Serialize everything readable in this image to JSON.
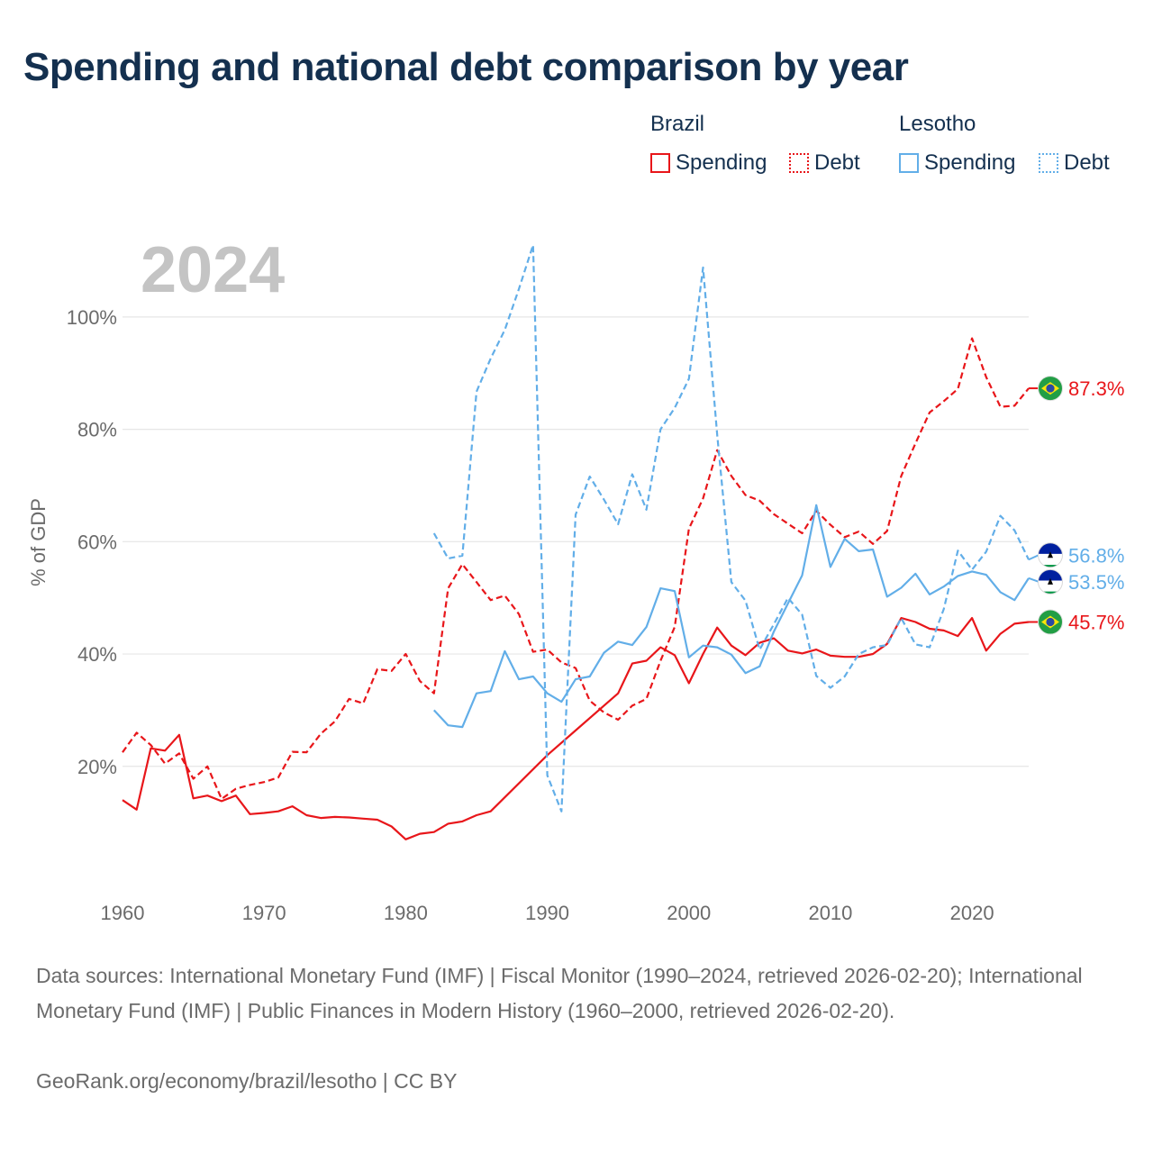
{
  "title": "Spending and national debt comparison by year",
  "legend": {
    "groups": [
      {
        "name": "Brazil",
        "items": [
          "Spending",
          "Debt"
        ]
      },
      {
        "name": "Lesotho",
        "items": [
          "Spending",
          "Debt"
        ]
      }
    ]
  },
  "colors": {
    "brazil": "#e8161a",
    "lesotho": "#62aee8",
    "year_watermark": "#c4c4c4",
    "grid": "#e6e6e6"
  },
  "footer": {
    "sources": "Data sources: International Monetary Fund (IMF) | Fiscal Monitor (1990–2024, retrieved 2026-02-20); International Monetary Fund (IMF) | Public Finances in Modern History (1960–2000, retrieved 2026-02-20).",
    "credit": "GeoRank.org/economy/brazil/lesotho | CC BY"
  },
  "chart_data": {
    "type": "line",
    "title": "Spending and national debt comparison by year",
    "year_label": "2024",
    "ylabel": "% of GDP",
    "xlabel": "",
    "xlim": [
      1960,
      2024
    ],
    "ylim": [
      0,
      110
    ],
    "x_ticks": [
      1960,
      1970,
      1980,
      1990,
      2000,
      2010,
      2020
    ],
    "y_ticks": [
      20,
      40,
      60,
      80,
      100
    ],
    "y_tick_labels": [
      "20%",
      "40%",
      "60%",
      "80%",
      "100%"
    ],
    "series": [
      {
        "name": "Brazil Spending",
        "country": "Brazil",
        "metric": "Spending",
        "style": "solid",
        "color": "#e8161a",
        "end_label": "45.7%",
        "points": [
          [
            1960,
            14.0
          ],
          [
            1961,
            12.3
          ],
          [
            1962,
            23.2
          ],
          [
            1963,
            22.8
          ],
          [
            1964,
            25.6
          ],
          [
            1965,
            14.3
          ],
          [
            1966,
            14.8
          ],
          [
            1967,
            13.8
          ],
          [
            1968,
            14.8
          ],
          [
            1969,
            11.5
          ],
          [
            1970,
            11.7
          ],
          [
            1971,
            12.0
          ],
          [
            1972,
            12.9
          ],
          [
            1973,
            11.3
          ],
          [
            1974,
            10.8
          ],
          [
            1975,
            11.0
          ],
          [
            1976,
            10.9
          ],
          [
            1977,
            10.7
          ],
          [
            1978,
            10.5
          ],
          [
            1979,
            9.3
          ],
          [
            1980,
            7.0
          ],
          [
            1981,
            8.0
          ],
          [
            1982,
            8.3
          ],
          [
            1983,
            9.8
          ],
          [
            1984,
            10.2
          ],
          [
            1985,
            11.3
          ],
          [
            1986,
            12.0
          ],
          [
            1990,
            22.0
          ],
          [
            1995,
            33.0
          ],
          [
            1996,
            38.3
          ],
          [
            1997,
            38.8
          ],
          [
            1998,
            41.2
          ],
          [
            1999,
            39.8
          ],
          [
            2000,
            34.8
          ],
          [
            2001,
            40.0
          ],
          [
            2002,
            44.7
          ],
          [
            2003,
            41.5
          ],
          [
            2004,
            39.8
          ],
          [
            2005,
            42.0
          ],
          [
            2006,
            42.8
          ],
          [
            2007,
            40.6
          ],
          [
            2008,
            40.1
          ],
          [
            2009,
            40.8
          ],
          [
            2010,
            39.7
          ],
          [
            2011,
            39.5
          ],
          [
            2012,
            39.5
          ],
          [
            2013,
            40.0
          ],
          [
            2014,
            41.8
          ],
          [
            2015,
            46.4
          ],
          [
            2016,
            45.7
          ],
          [
            2017,
            44.5
          ],
          [
            2018,
            44.2
          ],
          [
            2019,
            43.2
          ],
          [
            2020,
            46.4
          ],
          [
            2021,
            40.6
          ],
          [
            2022,
            43.6
          ],
          [
            2023,
            45.4
          ],
          [
            2024,
            45.7
          ]
        ]
      },
      {
        "name": "Brazil Debt",
        "country": "Brazil",
        "metric": "Debt",
        "style": "dashed",
        "color": "#e8161a",
        "end_label": "87.3%",
        "points": [
          [
            1960,
            22.5
          ],
          [
            1961,
            26.0
          ],
          [
            1962,
            23.8
          ],
          [
            1963,
            20.5
          ],
          [
            1964,
            22.3
          ],
          [
            1965,
            17.8
          ],
          [
            1966,
            20.0
          ],
          [
            1967,
            14.2
          ],
          [
            1968,
            16.0
          ],
          [
            1969,
            16.7
          ],
          [
            1970,
            17.2
          ],
          [
            1971,
            18.0
          ],
          [
            1972,
            22.6
          ],
          [
            1973,
            22.5
          ],
          [
            1974,
            25.8
          ],
          [
            1975,
            28.0
          ],
          [
            1976,
            32.0
          ],
          [
            1977,
            31.2
          ],
          [
            1978,
            37.3
          ],
          [
            1979,
            37.0
          ],
          [
            1980,
            40.0
          ],
          [
            1981,
            35.2
          ],
          [
            1982,
            33.0
          ],
          [
            1983,
            51.7
          ],
          [
            1984,
            56.0
          ],
          [
            1985,
            52.8
          ],
          [
            1986,
            49.6
          ],
          [
            1987,
            50.4
          ],
          [
            1988,
            47.1
          ],
          [
            1989,
            40.4
          ],
          [
            1990,
            40.8
          ],
          [
            1991,
            38.5
          ],
          [
            1992,
            37.5
          ],
          [
            1993,
            31.7
          ],
          [
            1994,
            29.6
          ],
          [
            1995,
            28.3
          ],
          [
            1996,
            30.8
          ],
          [
            1997,
            32.0
          ],
          [
            1998,
            38.8
          ],
          [
            1999,
            44.8
          ],
          [
            2000,
            62.3
          ],
          [
            2001,
            67.7
          ],
          [
            2002,
            76.3
          ],
          [
            2003,
            71.7
          ],
          [
            2004,
            68.3
          ],
          [
            2005,
            67.3
          ],
          [
            2006,
            64.9
          ],
          [
            2007,
            63.2
          ],
          [
            2008,
            61.5
          ],
          [
            2009,
            65.5
          ],
          [
            2010,
            63.0
          ],
          [
            2011,
            60.8
          ],
          [
            2012,
            61.8
          ],
          [
            2013,
            59.6
          ],
          [
            2014,
            61.9
          ],
          [
            2015,
            71.7
          ],
          [
            2016,
            77.5
          ],
          [
            2017,
            83.0
          ],
          [
            2018,
            85.0
          ],
          [
            2019,
            87.2
          ],
          [
            2020,
            96.2
          ],
          [
            2021,
            89.3
          ],
          [
            2022,
            84.0
          ],
          [
            2023,
            84.2
          ],
          [
            2024,
            87.3
          ]
        ]
      },
      {
        "name": "Lesotho Spending",
        "country": "Lesotho",
        "metric": "Spending",
        "style": "solid",
        "color": "#62aee8",
        "end_label": "53.5%",
        "points": [
          [
            1982,
            30.0
          ],
          [
            1983,
            27.3
          ],
          [
            1984,
            27.0
          ],
          [
            1985,
            33.0
          ],
          [
            1986,
            33.4
          ],
          [
            1987,
            40.5
          ],
          [
            1988,
            35.5
          ],
          [
            1989,
            36.0
          ],
          [
            1990,
            33.0
          ],
          [
            1991,
            31.5
          ],
          [
            1992,
            35.5
          ],
          [
            1993,
            36.0
          ],
          [
            1994,
            40.2
          ],
          [
            1995,
            42.2
          ],
          [
            1996,
            41.6
          ],
          [
            1997,
            44.8
          ],
          [
            1998,
            51.7
          ],
          [
            1999,
            51.2
          ],
          [
            2000,
            39.4
          ],
          [
            2001,
            41.5
          ],
          [
            2002,
            41.2
          ],
          [
            2003,
            39.9
          ],
          [
            2004,
            36.6
          ],
          [
            2005,
            37.8
          ],
          [
            2006,
            44.0
          ],
          [
            2007,
            49.0
          ],
          [
            2008,
            54.0
          ],
          [
            2009,
            66.5
          ],
          [
            2010,
            55.5
          ],
          [
            2011,
            60.5
          ],
          [
            2012,
            58.3
          ],
          [
            2013,
            58.6
          ],
          [
            2014,
            50.2
          ],
          [
            2015,
            51.8
          ],
          [
            2016,
            54.3
          ],
          [
            2017,
            50.6
          ],
          [
            2018,
            52.0
          ],
          [
            2019,
            53.9
          ],
          [
            2020,
            54.7
          ],
          [
            2021,
            54.1
          ],
          [
            2022,
            51.0
          ],
          [
            2023,
            49.6
          ],
          [
            2024,
            53.5
          ]
        ]
      },
      {
        "name": "Lesotho Debt",
        "country": "Lesotho",
        "metric": "Debt",
        "style": "dashed",
        "color": "#62aee8",
        "end_label": "56.8%",
        "points": [
          [
            1982,
            61.5
          ],
          [
            1983,
            57.0
          ],
          [
            1984,
            57.5
          ],
          [
            1985,
            86.7
          ],
          [
            1986,
            92.6
          ],
          [
            1987,
            97.7
          ],
          [
            1988,
            105.0
          ],
          [
            1989,
            112.8
          ],
          [
            1990,
            18.4
          ],
          [
            1991,
            12.0
          ],
          [
            1992,
            64.8
          ],
          [
            1993,
            71.6
          ],
          [
            1994,
            67.5
          ],
          [
            1995,
            63.1
          ],
          [
            1996,
            72.0
          ],
          [
            1997,
            65.7
          ],
          [
            1998,
            80.0
          ],
          [
            1999,
            83.8
          ],
          [
            2000,
            89.0
          ],
          [
            2001,
            108.8
          ],
          [
            2002,
            79.0
          ],
          [
            2003,
            52.8
          ],
          [
            2004,
            49.5
          ],
          [
            2005,
            40.8
          ],
          [
            2006,
            45.3
          ],
          [
            2007,
            50.0
          ],
          [
            2008,
            47.0
          ],
          [
            2009,
            36.1
          ],
          [
            2010,
            34.0
          ],
          [
            2011,
            36.0
          ],
          [
            2012,
            40.0
          ],
          [
            2013,
            41.2
          ],
          [
            2014,
            41.6
          ],
          [
            2015,
            46.4
          ],
          [
            2016,
            41.7
          ],
          [
            2017,
            41.2
          ],
          [
            2018,
            48.0
          ],
          [
            2019,
            58.4
          ],
          [
            2020,
            55.0
          ],
          [
            2021,
            58.2
          ],
          [
            2022,
            64.6
          ],
          [
            2023,
            62.0
          ],
          [
            2024,
            56.8
          ]
        ]
      }
    ]
  }
}
